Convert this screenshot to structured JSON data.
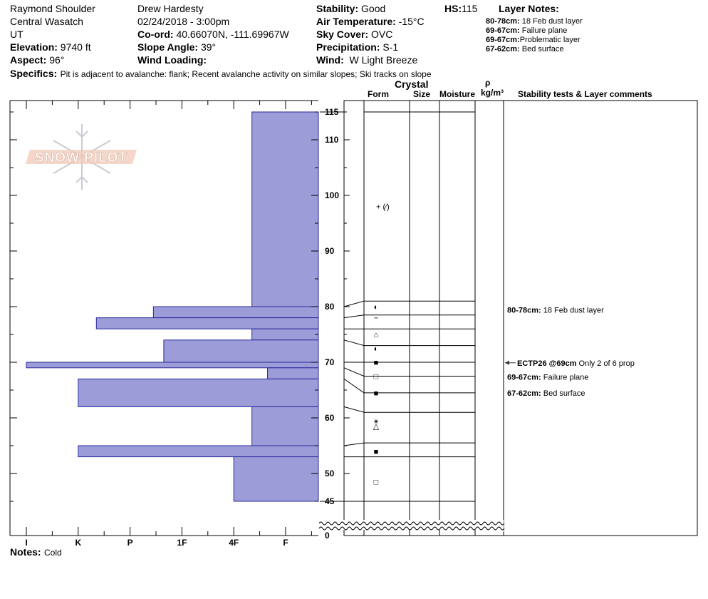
{
  "header": {
    "location": "Raymond Shoulder",
    "range": "Central Wasatch",
    "state": "UT",
    "elevation_label": "Elevation:",
    "elevation_value": "9740 ft",
    "aspect_label": "Aspect:",
    "aspect_value": "96°",
    "observer": "Drew Hardesty",
    "datetime": "02/24/2018 - 3:00pm",
    "coord_label": "Co-ord:",
    "coord_value": "40.66070N, -111.69967W",
    "slope_label": "Slope Angle:",
    "slope_value": "39°",
    "wind_loading_label": "Wind Loading:",
    "wind_loading_value": "",
    "stability_label": "Stability:",
    "stability_value": "Good",
    "air_temp_label": "Air Temperature:",
    "air_temp_value": "-15°C",
    "sky_label": "Sky Cover:",
    "sky_value": "OVC",
    "precip_label": "Precipitation:",
    "precip_value": "S-1",
    "wind_label": "Wind:",
    "wind_value": "W Light Breeze",
    "hs_label": "HS:",
    "hs_value": "115",
    "layer_notes_title": "Layer Notes:",
    "layer_notes": [
      {
        "range": "80-78cm:",
        "text": "18 Feb dust layer"
      },
      {
        "range": "69-67cm:",
        "text": "Failure plane"
      },
      {
        "range": "69-67cm:",
        "text": "Problematic layer"
      },
      {
        "range": "67-62cm:",
        "text": "Bed surface"
      }
    ],
    "specifics_label": "Specifics:",
    "specifics_value": "Pit is adjacent to avalanche: flank;  Recent avalanche activity on similar slopes; Ski tracks on slope"
  },
  "logo_text": "SNOW PILOT",
  "columns": {
    "crystal": "Crystal",
    "form": "Form",
    "size": "Size",
    "moisture": "Moisture",
    "rho": "ρ",
    "density_unit": "kg/m³",
    "tests": "Stability tests & Layer comments"
  },
  "notes_label": "Notes:",
  "notes_value": "Cold",
  "colors": {
    "bar_fill": "#9c9cd8",
    "bar_stroke": "#2a2a9a",
    "grid": "#000000"
  },
  "chart_data": {
    "type": "snow_profile_hardness",
    "hardness_scale": [
      "I",
      "K",
      "P",
      "1F",
      "4F",
      "F"
    ],
    "depth_ticks": [
      115,
      110,
      100,
      90,
      80,
      70,
      60,
      50,
      45,
      0
    ],
    "hs_cm": 115,
    "hardness_layers": [
      {
        "top": 115,
        "bottom": 80,
        "hardness": "4F-",
        "value": 4.35
      },
      {
        "top": 80,
        "bottom": 78,
        "hardness": "1F+",
        "value": 2.45
      },
      {
        "top": 78,
        "bottom": 76,
        "hardness": "P-",
        "value": 1.35
      },
      {
        "top": 76,
        "bottom": 74,
        "hardness": "4F-",
        "value": 4.35
      },
      {
        "top": 74,
        "bottom": 70,
        "hardness": "1F",
        "value": 2.65
      },
      {
        "top": 70,
        "bottom": 69,
        "hardness": "K-",
        "value": 0.0
      },
      {
        "top": 69,
        "bottom": 67,
        "hardness": "4F-",
        "value": 4.65
      },
      {
        "top": 67,
        "bottom": 62,
        "hardness": "P",
        "value": 1.0
      },
      {
        "top": 62,
        "bottom": 55,
        "hardness": "4F-",
        "value": 4.35
      },
      {
        "top": 55,
        "bottom": 53,
        "hardness": "P",
        "value": 1.0
      },
      {
        "top": 53,
        "bottom": 45,
        "hardness": "4F-",
        "value": 4.0
      }
    ],
    "layer_boundaries_right": [
      115,
      81,
      78.5,
      76,
      73,
      70,
      67.5,
      64.5,
      61,
      55.5,
      53,
      45
    ],
    "layer_boundaries_left": [
      80,
      78,
      76,
      74,
      70,
      69,
      67,
      62,
      55,
      53,
      45
    ],
    "grain_forms": [
      {
        "depth": 98,
        "symbol": "+ (⁄)"
      },
      {
        "depth": 80,
        "symbol": "◐"
      },
      {
        "depth": 78,
        "symbol": "−"
      },
      {
        "depth": 75,
        "symbol": "⌂"
      },
      {
        "depth": 72.5,
        "symbol": "◐"
      },
      {
        "depth": 70,
        "symbol": "■"
      },
      {
        "depth": 67.5,
        "symbol": "□"
      },
      {
        "depth": 64.5,
        "symbol": "■"
      },
      {
        "depth": 59.5,
        "symbol": "⚹"
      },
      {
        "depth": 58.5,
        "symbol": "△"
      },
      {
        "depth": 54,
        "symbol": "■"
      },
      {
        "depth": 48.5,
        "symbol": "□"
      }
    ],
    "comments": [
      {
        "depth": 79.4,
        "label": "80-78cm:",
        "text": "18 Feb dust layer"
      },
      {
        "depth": 69.9,
        "label": "ECTP26 @69cm",
        "text": "Only 2 of 6 prop",
        "arrow": true
      },
      {
        "depth": 67.4,
        "label": "69-67cm:",
        "text": "Failure plane"
      },
      {
        "depth": 64.5,
        "label": "67-62cm:",
        "text": "Bed surface"
      }
    ]
  }
}
